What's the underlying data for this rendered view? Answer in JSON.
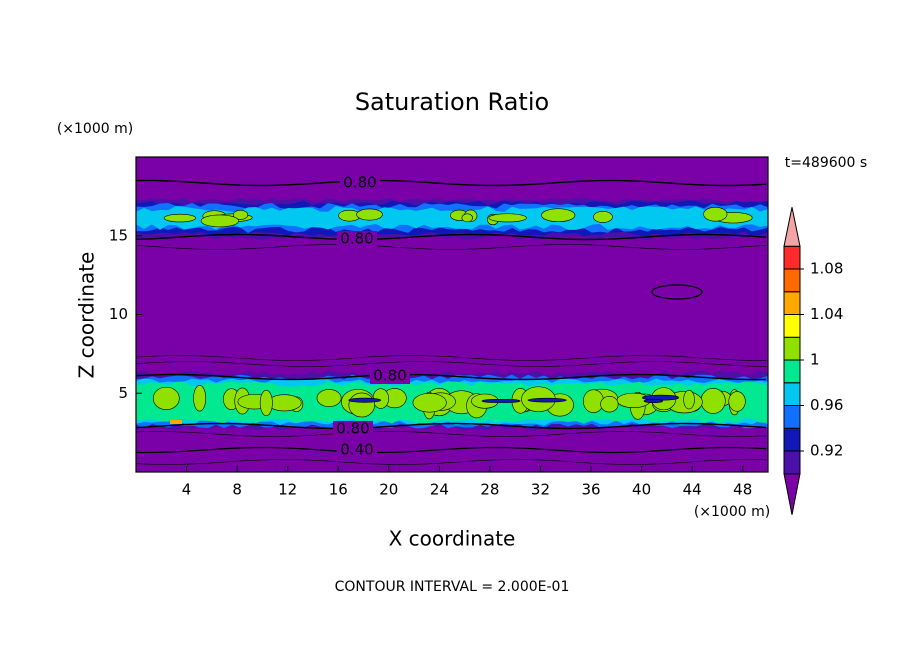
{
  "chart_data": {
    "type": "contour",
    "title": "Saturation Ratio",
    "xlabel": "X coordinate",
    "ylabel": "Z coordinate",
    "x_unit": "(×1000 m)",
    "y_unit": "(×1000 m)",
    "time_label": "t=489600 s",
    "footer": "CONTOUR INTERVAL = 2.000E-01",
    "xlim": [
      0,
      50
    ],
    "xticks": [
      4,
      8,
      12,
      16,
      20,
      24,
      28,
      32,
      36,
      40,
      44,
      48
    ],
    "ylim": [
      0,
      20
    ],
    "yticks": [
      5,
      10,
      15
    ],
    "contour_labels": [
      "0.80",
      "0.80",
      "0.80",
      "0.80",
      "0.40"
    ],
    "colorbar": {
      "levels": [
        0.9,
        0.92,
        0.94,
        0.96,
        0.98,
        1,
        1.02,
        1.04,
        1.06,
        1.08,
        1.1
      ],
      "colors": [
        "#7a00a8",
        "#4a10a8",
        "#1018b8",
        "#1070ff",
        "#00c8f0",
        "#00e890",
        "#90e000",
        "#ffff00",
        "#ffa800",
        "#ff6a00",
        "#ff2a2a",
        "#f4a4a4"
      ],
      "ticks": [
        0.92,
        0.96,
        1,
        1.04,
        1.08
      ]
    }
  }
}
